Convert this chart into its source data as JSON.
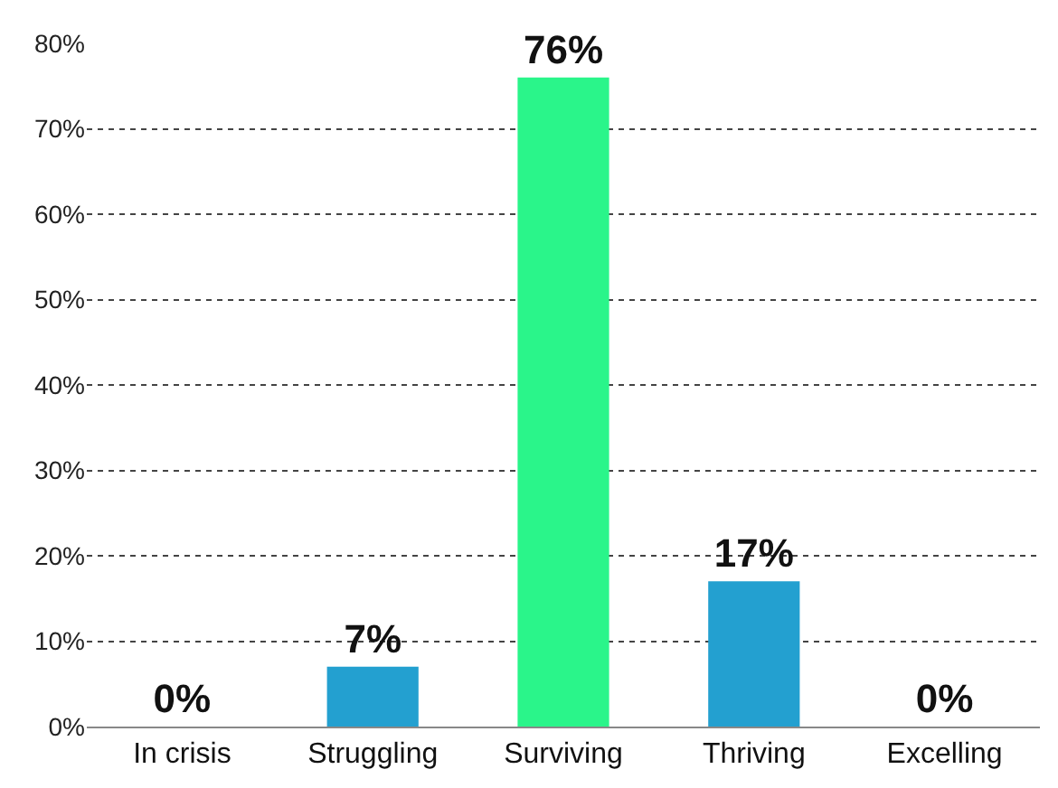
{
  "chart_data": {
    "type": "bar",
    "categories": [
      "In crisis",
      "Struggling",
      "Surviving",
      "Thriving",
      "Excelling"
    ],
    "values": [
      0,
      7,
      76,
      17,
      0
    ],
    "colors": [
      "#2af58a",
      "#23a0d0",
      "#2af58a",
      "#23a0d0",
      "#2af58a"
    ],
    "value_labels": [
      "0%",
      "7%",
      "76%",
      "17%",
      "0%"
    ],
    "ylim": [
      0,
      80
    ],
    "yticks": [
      {
        "value": 0,
        "label": "0%"
      },
      {
        "value": 10,
        "label": "10%"
      },
      {
        "value": 20,
        "label": "20%"
      },
      {
        "value": 30,
        "label": "30%"
      },
      {
        "value": 40,
        "label": "40%"
      },
      {
        "value": 50,
        "label": "50%"
      },
      {
        "value": 60,
        "label": "60%"
      },
      {
        "value": 70,
        "label": "70%"
      },
      {
        "value": 80,
        "label": "80%"
      }
    ],
    "grid": "y",
    "legend": false
  }
}
